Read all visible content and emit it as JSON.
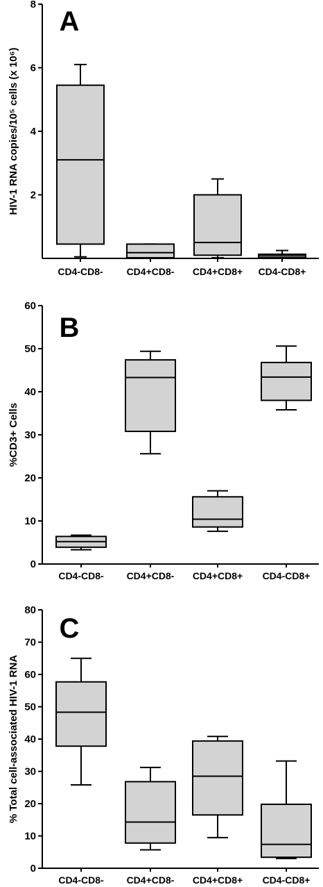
{
  "colors": {
    "box_fill": "#d3d3d3",
    "stroke": "#000000",
    "background": "#ffffff"
  },
  "chart_data": [
    {
      "type": "box",
      "panel_label": "A",
      "ylabel": "HIV-1 RNA copies/10⁵ cells (x 10⁶)",
      "ylim": [
        0,
        8
      ],
      "yticks": [
        2,
        4,
        6,
        8
      ],
      "categories": [
        "CD4-CD8-",
        "CD4+CD8-",
        "CD4+CD8+",
        "CD4-CD8+"
      ],
      "boxes": [
        {
          "whisker_low": 0.05,
          "q1": 0.45,
          "median": 3.1,
          "q3": 5.45,
          "whisker_high": 6.1
        },
        {
          "whisker_low": 0.02,
          "q1": 0.02,
          "median": 0.18,
          "q3": 0.45,
          "whisker_high": 0.45
        },
        {
          "whisker_low": 0.02,
          "q1": 0.1,
          "median": 0.5,
          "q3": 2.0,
          "whisker_high": 2.5
        },
        {
          "whisker_low": 0.0,
          "q1": 0.02,
          "median": 0.08,
          "q3": 0.13,
          "whisker_high": 0.25
        }
      ]
    },
    {
      "type": "box",
      "panel_label": "B",
      "ylabel": "%CD3+ Cells",
      "ylim": [
        0,
        60
      ],
      "yticks": [
        0,
        10,
        20,
        30,
        40,
        50,
        60
      ],
      "categories": [
        "CD4-CD8-",
        "CD4+CD8-",
        "CD4+CD8+",
        "CD4-CD8+"
      ],
      "boxes": [
        {
          "whisker_low": 3.3,
          "q1": 3.9,
          "median": 5.2,
          "q3": 6.4,
          "whisker_high": 6.7
        },
        {
          "whisker_low": 25.6,
          "q1": 30.8,
          "median": 43.3,
          "q3": 47.4,
          "whisker_high": 49.4
        },
        {
          "whisker_low": 7.6,
          "q1": 8.6,
          "median": 10.4,
          "q3": 15.6,
          "whisker_high": 17.0
        },
        {
          "whisker_low": 35.8,
          "q1": 38.0,
          "median": 43.4,
          "q3": 46.8,
          "whisker_high": 50.6
        }
      ]
    },
    {
      "type": "box",
      "panel_label": "C",
      "ylabel": "% Total cell-associated HIV-1 RNA",
      "ylim": [
        0,
        80
      ],
      "yticks": [
        0,
        10,
        20,
        30,
        40,
        50,
        60,
        70,
        80
      ],
      "categories": [
        "CD4-CD8-",
        "CD4+CD8-",
        "CD4+CD8+",
        "CD4-CD8+"
      ],
      "boxes": [
        {
          "whisker_low": 25.8,
          "q1": 37.8,
          "median": 48.3,
          "q3": 57.7,
          "whisker_high": 65.0
        },
        {
          "whisker_low": 5.7,
          "q1": 7.8,
          "median": 14.3,
          "q3": 26.8,
          "whisker_high": 31.2
        },
        {
          "whisker_low": 9.5,
          "q1": 16.5,
          "median": 28.5,
          "q3": 39.4,
          "whisker_high": 40.8
        },
        {
          "whisker_low": 3.0,
          "q1": 3.4,
          "median": 7.4,
          "q3": 19.8,
          "whisker_high": 33.2
        }
      ]
    }
  ]
}
